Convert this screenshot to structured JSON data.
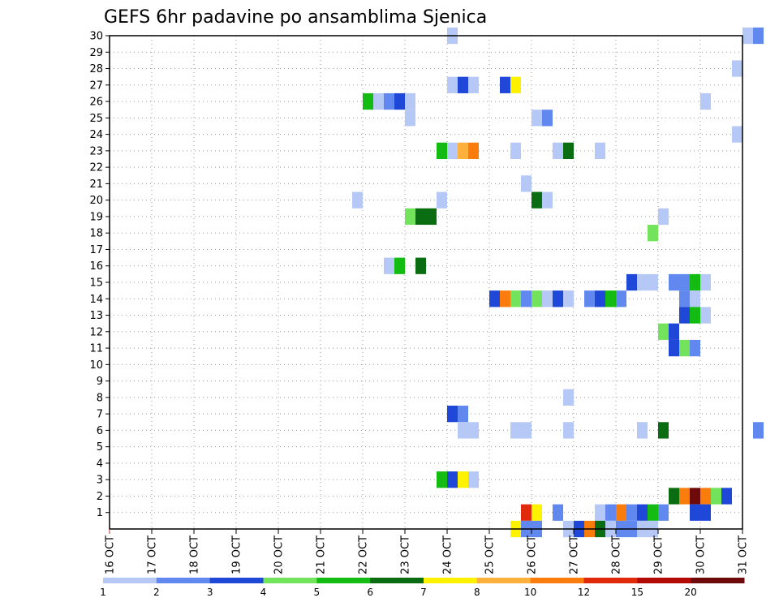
{
  "chart_data": {
    "type": "heatmap",
    "title": "GEFS 6hr padavine po ansamblima Sjenica",
    "x_ticks": [
      "16 OCT",
      "17 OCT",
      "18 OCT",
      "19 OCT",
      "20 OCT",
      "21 OCT",
      "22 OCT",
      "23 OCT",
      "24 OCT",
      "25 OCT",
      "26 OCT",
      "27 OCT",
      "28 OCT",
      "29 OCT",
      "30 OCT",
      "31 OCT"
    ],
    "y_ticks": [
      "1",
      "2",
      "3",
      "4",
      "5",
      "6",
      "7",
      "8",
      "9",
      "10",
      "11",
      "12",
      "13",
      "14",
      "15",
      "16",
      "17",
      "18",
      "19",
      "20",
      "21",
      "22",
      "23",
      "24",
      "25",
      "26",
      "27",
      "28",
      "29",
      "30"
    ],
    "grid": true,
    "colorbar": {
      "labels": [
        "1",
        "2",
        "3",
        "4",
        "5",
        "6",
        "7",
        "8",
        "10",
        "12",
        "15",
        "20"
      ],
      "colors": [
        "#b6c8f5",
        "#6088ee",
        "#1f48d8",
        "#72e35a",
        "#13bb13",
        "#0a6d12",
        "#fff200",
        "#fdb03c",
        "#f97c0d",
        "#e02a0c",
        "#b30a05",
        "#6e0a0a"
      ]
    },
    "cells": [
      {
        "t": "24 OCT 00",
        "m": 30,
        "c": 0
      },
      {
        "t": "31 OCT 00",
        "m": 30,
        "c": 0
      },
      {
        "t": "31 OCT 06",
        "m": 30,
        "c": 1
      },
      {
        "t": "30 OCT 18",
        "m": 28,
        "c": 0
      },
      {
        "t": "24 OCT 00",
        "m": 27,
        "c": 0
      },
      {
        "t": "24 OCT 06",
        "m": 27,
        "c": 2
      },
      {
        "t": "24 OCT 12",
        "m": 27,
        "c": 0
      },
      {
        "t": "25 OCT 06",
        "m": 27,
        "c": 2
      },
      {
        "t": "25 OCT 12",
        "m": 27,
        "c": 6
      },
      {
        "t": "22 OCT 00",
        "m": 26,
        "c": 4
      },
      {
        "t": "22 OCT 06",
        "m": 26,
        "c": 0
      },
      {
        "t": "22 OCT 12",
        "m": 26,
        "c": 1
      },
      {
        "t": "22 OCT 18",
        "m": 26,
        "c": 2
      },
      {
        "t": "23 OCT 00",
        "m": 26,
        "c": 0
      },
      {
        "t": "30 OCT 00",
        "m": 26,
        "c": 0
      },
      {
        "t": "23 OCT 00",
        "m": 25,
        "c": 0
      },
      {
        "t": "26 OCT 00",
        "m": 25,
        "c": 0
      },
      {
        "t": "26 OCT 06",
        "m": 25,
        "c": 1
      },
      {
        "t": "30 OCT 18",
        "m": 24,
        "c": 0
      },
      {
        "t": "23 OCT 18",
        "m": 23,
        "c": 4
      },
      {
        "t": "24 OCT 00",
        "m": 23,
        "c": 0
      },
      {
        "t": "24 OCT 06",
        "m": 23,
        "c": 7
      },
      {
        "t": "24 OCT 12",
        "m": 23,
        "c": 8
      },
      {
        "t": "25 OCT 12",
        "m": 23,
        "c": 0
      },
      {
        "t": "26 OCT 12",
        "m": 23,
        "c": 0
      },
      {
        "t": "26 OCT 18",
        "m": 23,
        "c": 5
      },
      {
        "t": "27 OCT 12",
        "m": 23,
        "c": 0
      },
      {
        "t": "25 OCT 18",
        "m": 21,
        "c": 0
      },
      {
        "t": "21 OCT 18",
        "m": 20,
        "c": 0
      },
      {
        "t": "23 OCT 18",
        "m": 20,
        "c": 0
      },
      {
        "t": "26 OCT 00",
        "m": 20,
        "c": 5
      },
      {
        "t": "26 OCT 06",
        "m": 20,
        "c": 0
      },
      {
        "t": "23 OCT 00",
        "m": 19,
        "c": 3
      },
      {
        "t": "23 OCT 06",
        "m": 19,
        "c": 5
      },
      {
        "t": "23 OCT 12",
        "m": 19,
        "c": 5
      },
      {
        "t": "29 OCT 00",
        "m": 19,
        "c": 0
      },
      {
        "t": "28 OCT 18",
        "m": 18,
        "c": 3
      },
      {
        "t": "22 OCT 12",
        "m": 16,
        "c": 0
      },
      {
        "t": "22 OCT 18",
        "m": 16,
        "c": 4
      },
      {
        "t": "23 OCT 06",
        "m": 16,
        "c": 5
      },
      {
        "t": "28 OCT 06",
        "m": 15,
        "c": 2
      },
      {
        "t": "28 OCT 12",
        "m": 15,
        "c": 0
      },
      {
        "t": "28 OCT 18",
        "m": 15,
        "c": 0
      },
      {
        "t": "29 OCT 06",
        "m": 15,
        "c": 1
      },
      {
        "t": "29 OCT 12",
        "m": 15,
        "c": 1
      },
      {
        "t": "29 OCT 18",
        "m": 15,
        "c": 4
      },
      {
        "t": "30 OCT 00",
        "m": 15,
        "c": 0
      },
      {
        "t": "25 OCT 00",
        "m": 14,
        "c": 2
      },
      {
        "t": "25 OCT 06",
        "m": 14,
        "c": 8
      },
      {
        "t": "25 OCT 12",
        "m": 14,
        "c": 3
      },
      {
        "t": "25 OCT 18",
        "m": 14,
        "c": 1
      },
      {
        "t": "26 OCT 00",
        "m": 14,
        "c": 3
      },
      {
        "t": "26 OCT 06",
        "m": 14,
        "c": 0
      },
      {
        "t": "26 OCT 12",
        "m": 14,
        "c": 2
      },
      {
        "t": "26 OCT 18",
        "m": 14,
        "c": 0
      },
      {
        "t": "27 OCT 06",
        "m": 14,
        "c": 1
      },
      {
        "t": "27 OCT 12",
        "m": 14,
        "c": 2
      },
      {
        "t": "27 OCT 18",
        "m": 14,
        "c": 4
      },
      {
        "t": "28 OCT 00",
        "m": 14,
        "c": 1
      },
      {
        "t": "29 OCT 12",
        "m": 14,
        "c": 1
      },
      {
        "t": "29 OCT 18",
        "m": 14,
        "c": 0
      },
      {
        "t": "29 OCT 12",
        "m": 13,
        "c": 2
      },
      {
        "t": "29 OCT 18",
        "m": 13,
        "c": 4
      },
      {
        "t": "30 OCT 00",
        "m": 13,
        "c": 0
      },
      {
        "t": "29 OCT 00",
        "m": 12,
        "c": 3
      },
      {
        "t": "29 OCT 06",
        "m": 12,
        "c": 2
      },
      {
        "t": "29 OCT 06",
        "m": 11,
        "c": 2
      },
      {
        "t": "29 OCT 12",
        "m": 11,
        "c": 3
      },
      {
        "t": "29 OCT 18",
        "m": 11,
        "c": 1
      },
      {
        "t": "26 OCT 18",
        "m": 8,
        "c": 0
      },
      {
        "t": "24 OCT 00",
        "m": 7,
        "c": 2
      },
      {
        "t": "24 OCT 06",
        "m": 7,
        "c": 1
      },
      {
        "t": "24 OCT 06",
        "m": 6,
        "c": 0
      },
      {
        "t": "24 OCT 12",
        "m": 6,
        "c": 0
      },
      {
        "t": "25 OCT 12",
        "m": 6,
        "c": 0
      },
      {
        "t": "25 OCT 18",
        "m": 6,
        "c": 0
      },
      {
        "t": "26 OCT 18",
        "m": 6,
        "c": 0
      },
      {
        "t": "28 OCT 12",
        "m": 6,
        "c": 0
      },
      {
        "t": "29 OCT 00",
        "m": 6,
        "c": 5
      },
      {
        "t": "31 OCT 06",
        "m": 6,
        "c": 1
      },
      {
        "t": "23 OCT 18",
        "m": 3,
        "c": 4
      },
      {
        "t": "24 OCT 00",
        "m": 3,
        "c": 2
      },
      {
        "t": "24 OCT 06",
        "m": 3,
        "c": 6
      },
      {
        "t": "24 OCT 12",
        "m": 3,
        "c": 0
      },
      {
        "t": "29 OCT 06",
        "m": 2,
        "c": 5
      },
      {
        "t": "29 OCT 12",
        "m": 2,
        "c": 8
      },
      {
        "t": "29 OCT 18",
        "m": 2,
        "c": 11
      },
      {
        "t": "30 OCT 00",
        "m": 2,
        "c": 8
      },
      {
        "t": "30 OCT 06",
        "m": 2,
        "c": 3
      },
      {
        "t": "30 OCT 12",
        "m": 2,
        "c": 2
      },
      {
        "t": "25 OCT 18",
        "m": 1,
        "c": 9
      },
      {
        "t": "26 OCT 00",
        "m": 1,
        "c": 6
      },
      {
        "t": "26 OCT 12",
        "m": 1,
        "c": 1
      },
      {
        "t": "27 OCT 12",
        "m": 1,
        "c": 0
      },
      {
        "t": "27 OCT 18",
        "m": 1,
        "c": 1
      },
      {
        "t": "28 OCT 00",
        "m": 1,
        "c": 8
      },
      {
        "t": "28 OCT 06",
        "m": 1,
        "c": 1
      },
      {
        "t": "28 OCT 12",
        "m": 1,
        "c": 2
      },
      {
        "t": "28 OCT 18",
        "m": 1,
        "c": 4
      },
      {
        "t": "29 OCT 00",
        "m": 1,
        "c": 1
      },
      {
        "t": "29 OCT 18",
        "m": 1,
        "c": 2
      },
      {
        "t": "30 OCT 00",
        "m": 1,
        "c": 2
      },
      {
        "t": "25 OCT 12",
        "m": 0,
        "c": 6
      },
      {
        "t": "25 OCT 18",
        "m": 0,
        "c": 1
      },
      {
        "t": "26 OCT 00",
        "m": 0,
        "c": 1
      },
      {
        "t": "26 OCT 18",
        "m": 0,
        "c": 0
      },
      {
        "t": "27 OCT 00",
        "m": 0,
        "c": 2
      },
      {
        "t": "27 OCT 06",
        "m": 0,
        "c": 8
      },
      {
        "t": "27 OCT 12",
        "m": 0,
        "c": 5
      },
      {
        "t": "27 OCT 18",
        "m": 0,
        "c": 0
      },
      {
        "t": "28 OCT 00",
        "m": 0,
        "c": 1
      },
      {
        "t": "28 OCT 06",
        "m": 0,
        "c": 1
      },
      {
        "t": "28 OCT 12",
        "m": 0,
        "c": 0
      },
      {
        "t": "28 OCT 18",
        "m": 0,
        "c": 0
      }
    ]
  }
}
